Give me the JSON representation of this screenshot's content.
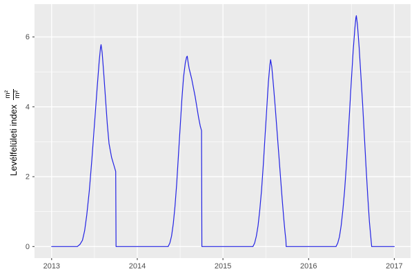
{
  "colors": {
    "page_bg": "#ffffff",
    "panel_bg": "#ebebeb",
    "grid": "#ffffff",
    "axis_text": "#4d4d4d",
    "tick_mark": "#333333",
    "title_text": "#000000",
    "line": "#2222e4"
  },
  "chart_data": {
    "type": "line",
    "title": "",
    "xlabel": "",
    "ylabel_text": "Levélfelületi index",
    "unit_fraction": {
      "numerator": "m²",
      "denominator": "m²"
    },
    "ylabel_full": "Levélfelületi index m²/m²",
    "x_tick_values": [
      2013,
      2014,
      2015,
      2016,
      2017
    ],
    "x_tick_labels": [
      "2013",
      "2014",
      "2015",
      "2016",
      "2017"
    ],
    "x_minor_ticks": [
      2013.5,
      2014.5,
      2015.5,
      2016.5
    ],
    "y_tick_values": [
      0,
      2,
      4,
      6
    ],
    "y_tick_labels": [
      "0",
      "2",
      "4",
      "6"
    ],
    "y_minor_ticks": [
      1,
      3,
      5
    ],
    "x_range": [
      2012.8,
      2017.19
    ],
    "y_range": [
      -0.33,
      6.94
    ],
    "grid": true,
    "legend": false,
    "peak_times": [
      2013.58,
      2014.58,
      2015.56,
      2016.56
    ],
    "peak_values": [
      5.78,
      5.45,
      5.35,
      6.61
    ],
    "series": [
      {
        "name": "leaf-area-index",
        "color": "#2222e4",
        "points": [
          [
            2013.0,
            0
          ],
          [
            2013.3,
            0
          ],
          [
            2013.33,
            0.06
          ],
          [
            2013.36,
            0.18
          ],
          [
            2013.385,
            0.45
          ],
          [
            2013.41,
            0.9
          ],
          [
            2013.44,
            1.6
          ],
          [
            2013.47,
            2.5
          ],
          [
            2013.5,
            3.5
          ],
          [
            2013.53,
            4.5
          ],
          [
            2013.555,
            5.3
          ],
          [
            2013.57,
            5.68
          ],
          [
            2013.577,
            5.78
          ],
          [
            2013.59,
            5.55
          ],
          [
            2013.61,
            4.9
          ],
          [
            2013.63,
            4.2
          ],
          [
            2013.65,
            3.5
          ],
          [
            2013.67,
            2.95
          ],
          [
            2013.7,
            2.55
          ],
          [
            2013.73,
            2.3
          ],
          [
            2013.748,
            2.15
          ],
          [
            2013.752,
            0
          ],
          [
            2014.36,
            0
          ],
          [
            2014.38,
            0.1
          ],
          [
            2014.4,
            0.3
          ],
          [
            2014.42,
            0.65
          ],
          [
            2014.44,
            1.15
          ],
          [
            2014.46,
            1.8
          ],
          [
            2014.48,
            2.6
          ],
          [
            2014.5,
            3.4
          ],
          [
            2014.52,
            4.2
          ],
          [
            2014.54,
            4.85
          ],
          [
            2014.56,
            5.25
          ],
          [
            2014.575,
            5.42
          ],
          [
            2014.583,
            5.45
          ],
          [
            2014.593,
            5.28
          ],
          [
            2014.605,
            5.1
          ],
          [
            2014.615,
            5.0
          ],
          [
            2014.635,
            4.8
          ],
          [
            2014.655,
            4.55
          ],
          [
            2014.675,
            4.3
          ],
          [
            2014.695,
            4.0
          ],
          [
            2014.715,
            3.7
          ],
          [
            2014.735,
            3.45
          ],
          [
            2014.75,
            3.32
          ],
          [
            2014.754,
            0
          ],
          [
            2015.35,
            0
          ],
          [
            2015.37,
            0.1
          ],
          [
            2015.39,
            0.3
          ],
          [
            2015.41,
            0.6
          ],
          [
            2015.43,
            1.05
          ],
          [
            2015.45,
            1.6
          ],
          [
            2015.47,
            2.3
          ],
          [
            2015.49,
            3.1
          ],
          [
            2015.51,
            3.9
          ],
          [
            2015.53,
            4.7
          ],
          [
            2015.548,
            5.2
          ],
          [
            2015.556,
            5.35
          ],
          [
            2015.57,
            5.15
          ],
          [
            2015.59,
            4.6
          ],
          [
            2015.61,
            4.0
          ],
          [
            2015.63,
            3.35
          ],
          [
            2015.65,
            2.7
          ],
          [
            2015.67,
            2.05
          ],
          [
            2015.69,
            1.4
          ],
          [
            2015.71,
            0.8
          ],
          [
            2015.725,
            0.4
          ],
          [
            2015.735,
            0.18
          ],
          [
            2015.738,
            0
          ],
          [
            2016.32,
            0
          ],
          [
            2016.34,
            0.1
          ],
          [
            2016.36,
            0.28
          ],
          [
            2016.38,
            0.6
          ],
          [
            2016.4,
            1.05
          ],
          [
            2016.42,
            1.6
          ],
          [
            2016.44,
            2.3
          ],
          [
            2016.46,
            3.1
          ],
          [
            2016.48,
            3.95
          ],
          [
            2016.5,
            4.8
          ],
          [
            2016.52,
            5.6
          ],
          [
            2016.54,
            6.25
          ],
          [
            2016.552,
            6.55
          ],
          [
            2016.557,
            6.61
          ],
          [
            2016.57,
            6.35
          ],
          [
            2016.59,
            5.7
          ],
          [
            2016.61,
            4.9
          ],
          [
            2016.63,
            4.1
          ],
          [
            2016.65,
            3.2
          ],
          [
            2016.67,
            2.3
          ],
          [
            2016.69,
            1.45
          ],
          [
            2016.71,
            0.7
          ],
          [
            2016.725,
            0.3
          ],
          [
            2016.733,
            0.08
          ],
          [
            2016.736,
            0
          ],
          [
            2017.0,
            0
          ]
        ]
      }
    ]
  }
}
